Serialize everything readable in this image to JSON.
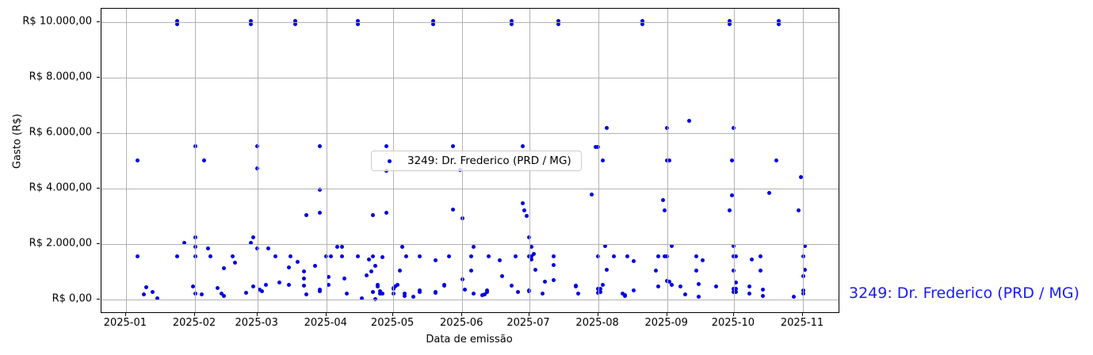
{
  "colors": {
    "point": "#0000e0",
    "grid": "#b2b2b2",
    "spine": "#000000",
    "legend_border": "#cccccc",
    "annotation_blue": "#1a1aff"
  },
  "chart_data": {
    "type": "scatter",
    "title": "",
    "xlabel": "Data de emissão",
    "ylabel": "Gasto (R$)",
    "grid": true,
    "legend_position": "center",
    "xlim": [
      "2024-12-21",
      "2025-11-17"
    ],
    "ylim": [
      -460,
      10490
    ],
    "x_ticks": [
      {
        "date": "2025-01-01",
        "label": "2025-01"
      },
      {
        "date": "2025-02-01",
        "label": "2025-02"
      },
      {
        "date": "2025-03-01",
        "label": "2025-03"
      },
      {
        "date": "2025-04-01",
        "label": "2025-04"
      },
      {
        "date": "2025-05-01",
        "label": "2025-05"
      },
      {
        "date": "2025-06-01",
        "label": "2025-06"
      },
      {
        "date": "2025-07-01",
        "label": "2025-07"
      },
      {
        "date": "2025-08-01",
        "label": "2025-08"
      },
      {
        "date": "2025-09-01",
        "label": "2025-09"
      },
      {
        "date": "2025-10-01",
        "label": "2025-10"
      },
      {
        "date": "2025-11-01",
        "label": "2025-11"
      }
    ],
    "y_ticks": [
      {
        "value": 0,
        "label": "R$ 0,00"
      },
      {
        "value": 2000,
        "label": "R$ 2.000,00"
      },
      {
        "value": 4000,
        "label": "R$ 4.000,00"
      },
      {
        "value": 6000,
        "label": "R$ 6.000,00"
      },
      {
        "value": 8000,
        "label": "R$ 8.000,00"
      },
      {
        "value": 10000,
        "label": "R$ 10.000,00"
      }
    ],
    "legend": {
      "label": "3249: Dr. Frederico (PRD / MG)"
    },
    "annotation": {
      "label": "3249: Dr. Frederico (PRD / MG)"
    },
    "series": [
      {
        "name": "3249: Dr. Frederico (PRD / MG)",
        "points": [
          [
            "2025-01-24",
            10040
          ],
          [
            "2025-01-24",
            9940
          ],
          [
            "2025-02-26",
            10040
          ],
          [
            "2025-02-26",
            9940
          ],
          [
            "2025-03-18",
            10040
          ],
          [
            "2025-03-18",
            9940
          ],
          [
            "2025-04-15",
            10040
          ],
          [
            "2025-04-15",
            9940
          ],
          [
            "2025-05-19",
            10040
          ],
          [
            "2025-05-19",
            9940
          ],
          [
            "2025-06-23",
            10040
          ],
          [
            "2025-06-23",
            9940
          ],
          [
            "2025-07-14",
            10040
          ],
          [
            "2025-07-14",
            9940
          ],
          [
            "2025-08-21",
            10040
          ],
          [
            "2025-08-21",
            9940
          ],
          [
            "2025-09-29",
            10040
          ],
          [
            "2025-09-29",
            9940
          ],
          [
            "2025-10-21",
            10040
          ],
          [
            "2025-10-21",
            9940
          ],
          [
            "2025-09-11",
            6440
          ],
          [
            "2025-08-05",
            6190
          ],
          [
            "2025-09-01",
            6190
          ],
          [
            "2025-10-01",
            6190
          ],
          [
            "2025-02-01",
            5540
          ],
          [
            "2025-03-01",
            5540
          ],
          [
            "2025-03-29",
            5520
          ],
          [
            "2025-04-28",
            5540
          ],
          [
            "2025-05-28",
            5540
          ],
          [
            "2025-06-28",
            5520
          ],
          [
            "2025-07-31",
            5500
          ],
          [
            "2025-08-01",
            5500
          ],
          [
            "2025-01-06",
            5030
          ],
          [
            "2025-02-05",
            5030
          ],
          [
            "2025-08-03",
            5030
          ],
          [
            "2025-09-01",
            5030
          ],
          [
            "2025-09-02",
            5010
          ],
          [
            "2025-09-30",
            5030
          ],
          [
            "2025-10-20",
            5030
          ],
          [
            "2025-03-01",
            4740
          ],
          [
            "2025-04-28",
            4650
          ],
          [
            "2025-05-31",
            4660
          ],
          [
            "2025-10-31",
            4420
          ],
          [
            "2025-03-29",
            3950
          ],
          [
            "2025-07-29",
            3800
          ],
          [
            "2025-09-30",
            3750
          ],
          [
            "2025-10-17",
            3830
          ],
          [
            "2025-03-23",
            3030
          ],
          [
            "2025-03-29",
            3140
          ],
          [
            "2025-04-22",
            3030
          ],
          [
            "2025-04-28",
            3140
          ],
          [
            "2025-05-28",
            3240
          ],
          [
            "2025-06-01",
            2920
          ],
          [
            "2025-06-28",
            3480
          ],
          [
            "2025-06-29",
            3210
          ],
          [
            "2025-06-30",
            3010
          ],
          [
            "2025-08-30",
            3590
          ],
          [
            "2025-08-31",
            3210
          ],
          [
            "2025-09-29",
            3210
          ],
          [
            "2025-10-30",
            3210
          ],
          [
            "2025-01-27",
            2050
          ],
          [
            "2025-02-01",
            2230
          ],
          [
            "2025-02-26",
            2050
          ],
          [
            "2025-02-27",
            2230
          ],
          [
            "2025-07-01",
            2230
          ],
          [
            "2025-02-01",
            1910
          ],
          [
            "2025-04-06",
            1905
          ],
          [
            "2025-04-08",
            1905
          ],
          [
            "2025-05-05",
            1905
          ],
          [
            "2025-06-06",
            1905
          ],
          [
            "2025-07-02",
            1905
          ],
          [
            "2025-08-04",
            1915
          ],
          [
            "2025-09-03",
            1915
          ],
          [
            "2025-10-01",
            1915
          ],
          [
            "2025-11-02",
            1915
          ],
          [
            "2025-02-07",
            1830
          ],
          [
            "2025-03-01",
            1840
          ],
          [
            "2025-03-06",
            1840
          ],
          [
            "2025-01-06",
            1550
          ],
          [
            "2025-01-24",
            1550
          ],
          [
            "2025-02-01",
            1550
          ],
          [
            "2025-02-08",
            1550
          ],
          [
            "2025-02-18",
            1550
          ],
          [
            "2025-03-09",
            1550
          ],
          [
            "2025-03-16",
            1550
          ],
          [
            "2025-04-01",
            1550
          ],
          [
            "2025-04-03",
            1550
          ],
          [
            "2025-04-08",
            1550
          ],
          [
            "2025-04-15",
            1550
          ],
          [
            "2025-04-22",
            1550
          ],
          [
            "2025-04-26",
            1535
          ],
          [
            "2025-05-07",
            1550
          ],
          [
            "2025-05-13",
            1550
          ],
          [
            "2025-05-26",
            1550
          ],
          [
            "2025-06-05",
            1550
          ],
          [
            "2025-06-13",
            1550
          ],
          [
            "2025-06-25",
            1550
          ],
          [
            "2025-07-01",
            1550
          ],
          [
            "2025-07-02",
            1550
          ],
          [
            "2025-07-12",
            1550
          ],
          [
            "2025-08-01",
            1550
          ],
          [
            "2025-08-08",
            1550
          ],
          [
            "2025-08-14",
            1550
          ],
          [
            "2025-08-28",
            1550
          ],
          [
            "2025-08-31",
            1550
          ],
          [
            "2025-09-01",
            1550
          ],
          [
            "2025-09-14",
            1560
          ],
          [
            "2025-10-01",
            1550
          ],
          [
            "2025-10-02",
            1550
          ],
          [
            "2025-10-13",
            1550
          ],
          [
            "2025-11-01",
            1550
          ],
          [
            "2025-02-19",
            1335
          ],
          [
            "2025-03-19",
            1370
          ],
          [
            "2025-04-20",
            1435
          ],
          [
            "2025-05-20",
            1410
          ],
          [
            "2025-06-18",
            1410
          ],
          [
            "2025-07-02",
            1455
          ],
          [
            "2025-07-03",
            1630
          ],
          [
            "2025-08-17",
            1390
          ],
          [
            "2025-09-17",
            1410
          ],
          [
            "2025-10-09",
            1430
          ],
          [
            "2025-02-14",
            1125
          ],
          [
            "2025-03-15",
            1150
          ],
          [
            "2025-03-27",
            1200
          ],
          [
            "2025-04-23",
            1220
          ],
          [
            "2025-07-12",
            1250
          ],
          [
            "2025-03-22",
            1010
          ],
          [
            "2025-04-21",
            1010
          ],
          [
            "2025-05-04",
            1040
          ],
          [
            "2025-06-05",
            1040
          ],
          [
            "2025-07-04",
            1080
          ],
          [
            "2025-08-05",
            1060
          ],
          [
            "2025-08-27",
            1040
          ],
          [
            "2025-09-14",
            1040
          ],
          [
            "2025-10-01",
            1040
          ],
          [
            "2025-10-13",
            1040
          ],
          [
            "2025-11-02",
            1060
          ],
          [
            "2025-04-02",
            810
          ],
          [
            "2025-04-19",
            885
          ],
          [
            "2025-06-19",
            850
          ],
          [
            "2025-11-01",
            830
          ],
          [
            "2025-03-22",
            745
          ],
          [
            "2025-04-09",
            745
          ],
          [
            "2025-06-01",
            735
          ],
          [
            "2025-07-12",
            695
          ],
          [
            "2025-09-01",
            675
          ],
          [
            "2025-09-02",
            650
          ],
          [
            "2025-03-11",
            600
          ],
          [
            "2025-07-08",
            630
          ],
          [
            "2025-09-15",
            570
          ],
          [
            "2025-10-02",
            600
          ],
          [
            "2025-01-31",
            457
          ],
          [
            "2025-02-11",
            400
          ],
          [
            "2025-02-27",
            466
          ],
          [
            "2025-03-05",
            514
          ],
          [
            "2025-03-15",
            534
          ],
          [
            "2025-03-22",
            486
          ],
          [
            "2025-04-02",
            514
          ],
          [
            "2025-04-24",
            523
          ],
          [
            "2025-04-24",
            457
          ],
          [
            "2025-05-02",
            466
          ],
          [
            "2025-05-03",
            523
          ],
          [
            "2025-05-24",
            486
          ],
          [
            "2025-05-24",
            523
          ],
          [
            "2025-06-23",
            486
          ],
          [
            "2025-07-22",
            457
          ],
          [
            "2025-07-22",
            486
          ],
          [
            "2025-08-03",
            523
          ],
          [
            "2025-08-28",
            466
          ],
          [
            "2025-09-03",
            514
          ],
          [
            "2025-09-07",
            457
          ],
          [
            "2025-09-23",
            477
          ],
          [
            "2025-10-08",
            466
          ],
          [
            "2025-01-10",
            430
          ],
          [
            "2025-01-13",
            277
          ],
          [
            "2025-03-02",
            343
          ],
          [
            "2025-03-03",
            294
          ],
          [
            "2025-03-29",
            343
          ],
          [
            "2025-03-29",
            286
          ],
          [
            "2025-04-22",
            266
          ],
          [
            "2025-04-25",
            294
          ],
          [
            "2025-05-01",
            371
          ],
          [
            "2025-05-01",
            409
          ],
          [
            "2025-05-13",
            266
          ],
          [
            "2025-05-13",
            314
          ],
          [
            "2025-05-20",
            266
          ],
          [
            "2025-06-02",
            343
          ],
          [
            "2025-06-12",
            266
          ],
          [
            "2025-06-12",
            323
          ],
          [
            "2025-06-26",
            257
          ],
          [
            "2025-07-01",
            323
          ],
          [
            "2025-07-01",
            286
          ],
          [
            "2025-08-01",
            391
          ],
          [
            "2025-08-02",
            391
          ],
          [
            "2025-08-02",
            257
          ],
          [
            "2025-08-17",
            334
          ],
          [
            "2025-10-01",
            391
          ],
          [
            "2025-10-02",
            391
          ],
          [
            "2025-10-01",
            266
          ],
          [
            "2025-10-02",
            266
          ],
          [
            "2025-10-14",
            363
          ],
          [
            "2025-11-01",
            314
          ],
          [
            "2025-01-09",
            180
          ],
          [
            "2025-01-15",
            49
          ],
          [
            "2025-02-01",
            220
          ],
          [
            "2025-02-04",
            171
          ],
          [
            "2025-02-13",
            200
          ],
          [
            "2025-02-14",
            134
          ],
          [
            "2025-02-24",
            229
          ],
          [
            "2025-03-23",
            180
          ],
          [
            "2025-04-10",
            200
          ],
          [
            "2025-04-17",
            29
          ],
          [
            "2025-04-23",
            0
          ],
          [
            "2025-04-25",
            200
          ],
          [
            "2025-04-26",
            200
          ],
          [
            "2025-05-01",
            200
          ],
          [
            "2025-05-06",
            200
          ],
          [
            "2025-05-06",
            134
          ],
          [
            "2025-05-10",
            86
          ],
          [
            "2025-05-20",
            237
          ],
          [
            "2025-06-06",
            200
          ],
          [
            "2025-06-10",
            151
          ],
          [
            "2025-06-11",
            180
          ],
          [
            "2025-07-07",
            220
          ],
          [
            "2025-07-23",
            200
          ],
          [
            "2025-08-01",
            229
          ],
          [
            "2025-08-12",
            200
          ],
          [
            "2025-08-13",
            151
          ],
          [
            "2025-08-13",
            120
          ],
          [
            "2025-09-09",
            180
          ],
          [
            "2025-09-15",
            94
          ],
          [
            "2025-10-08",
            200
          ],
          [
            "2025-10-14",
            123
          ],
          [
            "2025-10-28",
            94
          ],
          [
            "2025-11-01",
            220
          ]
        ]
      }
    ]
  }
}
